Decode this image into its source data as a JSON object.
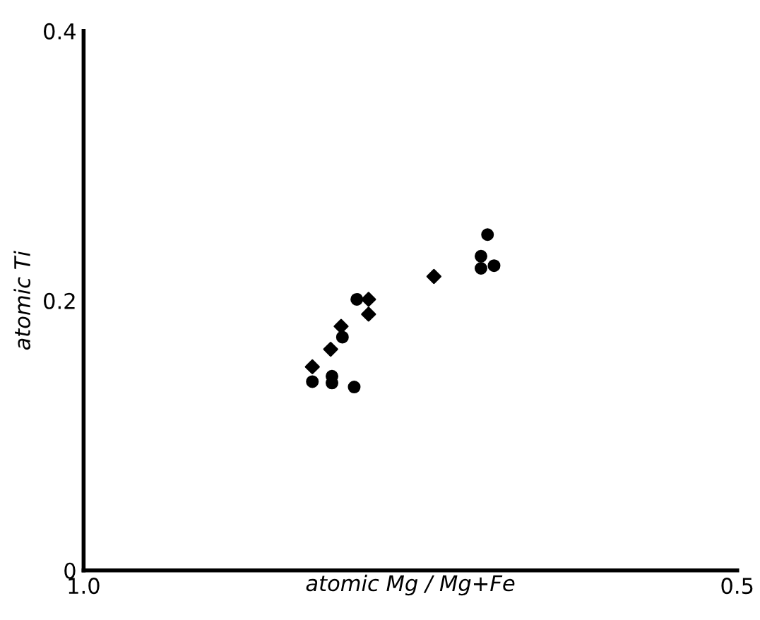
{
  "chart_data": {
    "type": "scatter",
    "xlabel": "atomic Mg / Mg+Fe",
    "ylabel": "atomic Ti",
    "xlim": [
      1.0,
      0.5
    ],
    "ylim": [
      0,
      0.4
    ],
    "xticks": [
      {
        "value": 1.0,
        "label": "1.0"
      },
      {
        "value": 0.5,
        "label": "0.5"
      }
    ],
    "yticks": [
      0,
      0.2,
      0.4
    ],
    "grid": false,
    "legend": false,
    "series": [
      {
        "color": "#000000",
        "marker": "diamond",
        "x": [
          0.825,
          0.811,
          0.803,
          0.782,
          0.782,
          0.732
        ],
        "values": [
          0.151,
          0.164,
          0.181,
          0.201,
          0.19,
          0.218
        ]
      },
      {
        "color": "#000000",
        "marker": "circle",
        "x": [
          0.825,
          0.81,
          0.81,
          0.793,
          0.802,
          0.791,
          0.691,
          0.696,
          0.696,
          0.686
        ],
        "values": [
          0.14,
          0.144,
          0.139,
          0.136,
          0.173,
          0.201,
          0.249,
          0.233,
          0.224,
          0.226
        ]
      }
    ]
  }
}
